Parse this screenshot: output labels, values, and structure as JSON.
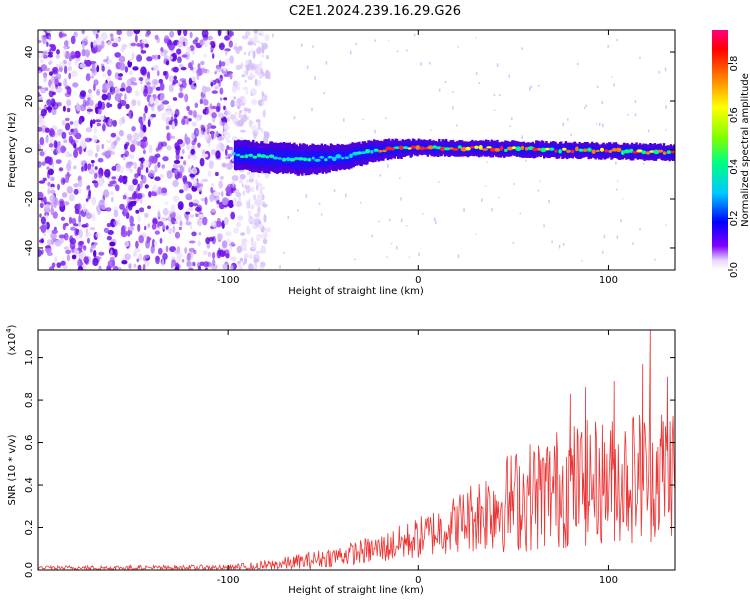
{
  "page_title": "C2E1.2024.239.16.29.G26",
  "chart_data": [
    {
      "type": "heatmap",
      "xlabel": "Height of straight line (km)",
      "ylabel": "Frequency (Hz)",
      "xlim": [
        -200,
        135
      ],
      "ylim": [
        -49,
        49
      ],
      "x_ticks": [
        -100,
        0,
        100
      ],
      "y_ticks": [
        -40,
        -20,
        0,
        20,
        40
      ],
      "grid": false,
      "noise_region_x": [
        -200,
        -97
      ],
      "signal_band": [
        {
          "x": -97,
          "center": -2,
          "halfwidth": 6
        },
        {
          "x": -80,
          "center": -3,
          "halfwidth": 6
        },
        {
          "x": -60,
          "center": -4,
          "halfwidth": 6
        },
        {
          "x": -40,
          "center": -3,
          "halfwidth": 5
        },
        {
          "x": -20,
          "center": 0,
          "halfwidth": 4
        },
        {
          "x": 0,
          "center": 1,
          "halfwidth": 3
        },
        {
          "x": 40,
          "center": 0.5,
          "halfwidth": 3
        },
        {
          "x": 80,
          "center": 0,
          "halfwidth": 3
        },
        {
          "x": 135,
          "center": -1,
          "halfwidth": 3
        }
      ],
      "colorbar": {
        "label": "Normalized spectral amplitude",
        "range": [
          0,
          0.93
        ],
        "ticks": [
          "0.0",
          "0.2",
          "0.4",
          "0.6",
          "0.8"
        ],
        "colors": [
          "#ffffff",
          "#8000ff",
          "#0000ff",
          "#00c8ff",
          "#00ff80",
          "#80ff00",
          "#ffff00",
          "#ff8000",
          "#ff0000",
          "#ff0080"
        ]
      }
    },
    {
      "type": "line",
      "xlabel": "Height of straight line (km)",
      "ylabel": "SNR (10 * v/v)",
      "y_scale_label": "(x10",
      "y_scale_exp": "4",
      "y_scale_close": ")",
      "xlim": [
        -200,
        135
      ],
      "ylim": [
        0,
        1.13
      ],
      "x_ticks": [
        -100,
        0,
        100
      ],
      "y_ticks": [
        "0.0",
        "0.2",
        "0.4",
        "0.6",
        "0.8",
        "1.0"
      ],
      "grid": false,
      "series_color": "#ee3333",
      "envelope": [
        {
          "x": -200,
          "mean": 0.01,
          "amp": 0.01
        },
        {
          "x": -100,
          "mean": 0.01,
          "amp": 0.015
        },
        {
          "x": -80,
          "mean": 0.02,
          "amp": 0.025
        },
        {
          "x": -60,
          "mean": 0.04,
          "amp": 0.04
        },
        {
          "x": -40,
          "mean": 0.07,
          "amp": 0.05
        },
        {
          "x": -20,
          "mean": 0.1,
          "amp": 0.07
        },
        {
          "x": 0,
          "mean": 0.15,
          "amp": 0.1
        },
        {
          "x": 20,
          "mean": 0.22,
          "amp": 0.14
        },
        {
          "x": 40,
          "mean": 0.3,
          "amp": 0.22
        },
        {
          "x": 60,
          "mean": 0.35,
          "amp": 0.27
        },
        {
          "x": 80,
          "mean": 0.4,
          "amp": 0.3
        },
        {
          "x": 100,
          "mean": 0.42,
          "amp": 0.3
        },
        {
          "x": 120,
          "mean": 0.45,
          "amp": 0.33
        },
        {
          "x": 135,
          "mean": 0.48,
          "amp": 0.33
        }
      ],
      "peaks": [
        {
          "x": 80,
          "y": 0.83
        },
        {
          "x": 88,
          "y": 0.86
        },
        {
          "x": 103,
          "y": 0.89
        },
        {
          "x": 118,
          "y": 0.97
        },
        {
          "x": 122,
          "y": 1.13
        },
        {
          "x": 131,
          "y": 0.91
        }
      ]
    }
  ]
}
